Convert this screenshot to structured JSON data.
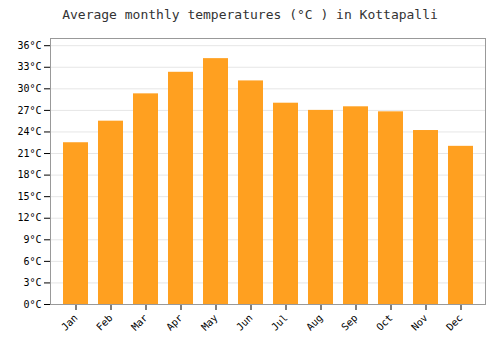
{
  "chart_data": {
    "type": "bar",
    "title": "Average monthly temperatures (°C ) in Kottapalli",
    "categories": [
      "Jan",
      "Feb",
      "Mar",
      "Apr",
      "May",
      "Jun",
      "Jul",
      "Aug",
      "Sep",
      "Oct",
      "Nov",
      "Dec"
    ],
    "values": [
      22.5,
      25.5,
      29.3,
      32.3,
      34.2,
      31.1,
      28.0,
      27.0,
      27.5,
      26.8,
      24.2,
      22.0
    ],
    "color": "#FFA020",
    "ylim": [
      0,
      37
    ],
    "yticks": [
      {
        "value": 0,
        "label": "0°C"
      },
      {
        "value": 3,
        "label": "3°C"
      },
      {
        "value": 6,
        "label": "6°C"
      },
      {
        "value": 9,
        "label": "9°C"
      },
      {
        "value": 12,
        "label": "12°C"
      },
      {
        "value": 15,
        "label": "15°C"
      },
      {
        "value": 18,
        "label": "18°C"
      },
      {
        "value": 21,
        "label": "21°C"
      },
      {
        "value": 24,
        "label": "24°C"
      },
      {
        "value": 27,
        "label": "27°C"
      },
      {
        "value": 30,
        "label": "30°C"
      },
      {
        "value": 33,
        "label": "33°C"
      },
      {
        "value": 36,
        "label": "36°C"
      }
    ],
    "grid": true
  }
}
